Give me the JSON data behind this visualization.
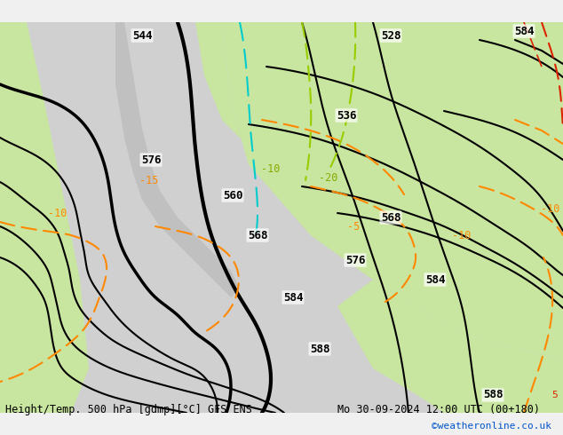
{
  "title_left": "Height/Temp. 500 hPa [gdmp][°C] GFS ENS",
  "title_right": "Mo 30-09-2024 12:00 UTC (00+180)",
  "credit": "©weatheronline.co.uk",
  "bg_color_land_green": "#c8e6a0",
  "bg_color_sea": "#d8d8d8",
  "bg_color_land_gray": "#e8e8e8",
  "text_color": "#000000",
  "credit_color": "#0055cc",
  "contour_color_black": "#000000",
  "contour_color_orange": "#ff8800",
  "contour_color_cyan": "#00cccc",
  "contour_color_green": "#88cc00",
  "contour_color_red": "#ff0000",
  "font_size_label": 9,
  "font_size_title": 8.5
}
